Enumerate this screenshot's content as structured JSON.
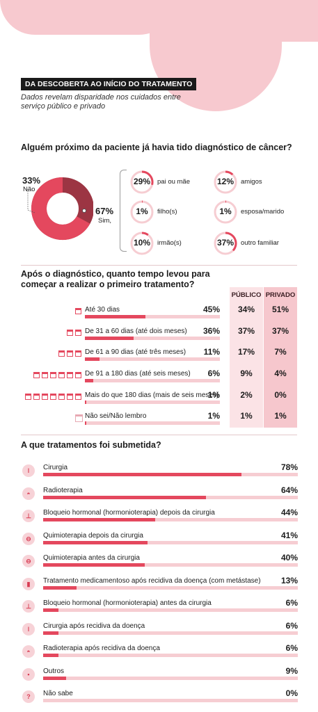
{
  "header": {
    "tag": "DA DESCOBERTA AO INÍCIO DO TRATAMENTO",
    "subtitle": "Dados revelam disparidade nos cuidados entre serviço público e privado"
  },
  "colors": {
    "accent": "#e4485e",
    "dark": "#9c3543",
    "light": "#f6cdd2",
    "bg_pink": "#f7c9cf"
  },
  "q1": {
    "title": "Alguém próximo da paciente já havia tido diagnóstico de câncer?",
    "no_pct": "33%",
    "no_label": "Não",
    "yes_pct": "67%",
    "yes_label": "Sim,",
    "relatives": [
      {
        "pct": "29%",
        "label": "pai ou mãe",
        "value": 29
      },
      {
        "pct": "12%",
        "label": "amigos",
        "value": 12
      },
      {
        "pct": "1%",
        "label": "filho(s)",
        "value": 1
      },
      {
        "pct": "1%",
        "label": "esposa/marido",
        "value": 1
      },
      {
        "pct": "10%",
        "label": "irmão(s)",
        "value": 10
      },
      {
        "pct": "37%",
        "label": "outro familiar",
        "value": 37
      }
    ]
  },
  "q2": {
    "title": "Após o diagnóstico, quanto tempo levou para começar a realizar o primeiro tratamento?",
    "col_publico": "PÚBLICO",
    "col_privado": "PRIVADO",
    "rows": [
      {
        "label": "Até 30 dias",
        "pct": "45%",
        "value": 45,
        "publico": "34%",
        "privado": "51%",
        "cal": 1
      },
      {
        "label": "De 31 a 60 dias (até dois meses)",
        "pct": "36%",
        "value": 36,
        "publico": "37%",
        "privado": "37%",
        "cal": 2
      },
      {
        "label": "De 61 a 90 dias (até três meses)",
        "pct": "11%",
        "value": 11,
        "publico": "17%",
        "privado": "7%",
        "cal": 3
      },
      {
        "label": "De 91 a 180 dias (até seis meses)",
        "pct": "6%",
        "value": 6,
        "publico": "9%",
        "privado": "4%",
        "cal": 6
      },
      {
        "label": "Mais do que 180 dias (mais de seis meses)",
        "pct": "1%",
        "value": 1,
        "publico": "2%",
        "privado": "0%",
        "cal": 7
      },
      {
        "label": "Não sei/Não lembro",
        "pct": "1%",
        "value": 1,
        "publico": "1%",
        "privado": "1%",
        "cal": 0
      }
    ]
  },
  "q3": {
    "title": "A que tratamentos foi submetida?",
    "rows": [
      {
        "label": "Cirurgia",
        "pct": "78%",
        "value": 78,
        "icon": "scalpel-icon",
        "glyph": "ǀ"
      },
      {
        "label": "Radioterapia",
        "pct": "64%",
        "value": 64,
        "icon": "radiation-machine-icon",
        "glyph": "◓"
      },
      {
        "label": "Bloqueio hormonal (hormonioterapia) depois da cirurgia",
        "pct": "44%",
        "value": 44,
        "icon": "hormone-pill-icon",
        "glyph": "⊥"
      },
      {
        "label": "Quimioterapia depois da cirurgia",
        "pct": "41%",
        "value": 41,
        "icon": "iv-drip-icon",
        "glyph": "⊖"
      },
      {
        "label": "Quimioterapia antes da cirurgia",
        "pct": "40%",
        "value": 40,
        "icon": "iv-drip-icon",
        "glyph": "⊖"
      },
      {
        "label": "Tratamento medicamentoso após recidiva da doença (com metástase)",
        "pct": "13%",
        "value": 13,
        "icon": "medicine-icon",
        "glyph": "▮"
      },
      {
        "label": "Bloqueio hormonal (hormonioterapia) antes da cirurgia",
        "pct": "6%",
        "value": 6,
        "icon": "hormone-pill-icon",
        "glyph": "⊥"
      },
      {
        "label": "Cirurgia após recidiva da doença",
        "pct": "6%",
        "value": 6,
        "icon": "scalpel-icon",
        "glyph": "ǀ"
      },
      {
        "label": "Radioterapia após recidiva da doença",
        "pct": "6%",
        "value": 6,
        "icon": "radiation-machine-icon",
        "glyph": "◓"
      },
      {
        "label": "Outros",
        "pct": "9%",
        "value": 9,
        "icon": "others-icon",
        "glyph": "▪"
      },
      {
        "label": "Não sabe",
        "pct": "0%",
        "value": 0,
        "icon": "question-icon",
        "glyph": "?"
      }
    ]
  },
  "chart_data": [
    {
      "type": "pie",
      "title": "Alguém próximo da paciente já havia tido diagnóstico de câncer?",
      "categories": [
        "Sim",
        "Não"
      ],
      "values": [
        67,
        33
      ]
    },
    {
      "type": "bar",
      "title": "Após o diagnóstico, quanto tempo levou para começar a realizar o primeiro tratamento?",
      "categories": [
        "Até 30 dias",
        "De 31 a 60 dias (até dois meses)",
        "De 61 a 90 dias (até três meses)",
        "De 91 a 180 dias (até seis meses)",
        "Mais do que 180 dias (mais de seis meses)",
        "Não sei/Não lembro"
      ],
      "series": [
        {
          "values": [
            45,
            36,
            11,
            6,
            1,
            1
          ]
        },
        {
          "name": "PÚBLICO",
          "values": [
            34,
            37,
            17,
            9,
            2,
            1
          ]
        },
        {
          "name": "PRIVADO",
          "values": [
            51,
            37,
            7,
            4,
            0,
            1
          ]
        }
      ]
    },
    {
      "type": "bar",
      "title": "A que tratamentos foi submetida?",
      "categories": [
        "Cirurgia",
        "Radioterapia",
        "Bloqueio hormonal (hormonioterapia) depois da cirurgia",
        "Quimioterapia depois da cirurgia",
        "Quimioterapia antes da cirurgia",
        "Tratamento medicamentoso após recidiva da doença (com metástase)",
        "Bloqueio hormonal (hormonioterapia) antes da cirurgia",
        "Cirurgia após recidiva da doença",
        "Radioterapia após recidiva da doença",
        "Outros",
        "Não sabe"
      ],
      "values": [
        78,
        64,
        44,
        41,
        40,
        13,
        6,
        6,
        6,
        9,
        0
      ]
    }
  ]
}
